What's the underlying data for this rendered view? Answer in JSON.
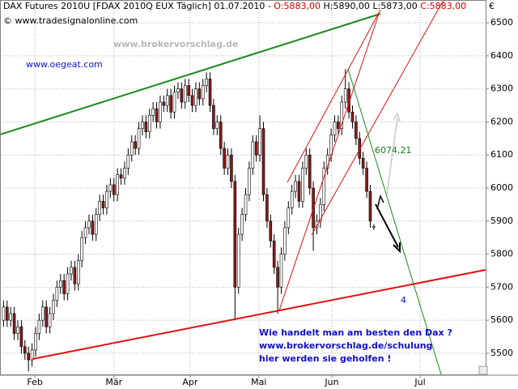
{
  "chart_data": {
    "type": "candlestick",
    "title": "DAX Futures 2010U [FDAX 2010Q EUX  Täglich] 01.07.2010 - ",
    "ohlc_text": [
      "O:5883,00",
      "H:5890,00",
      "L:5873,00",
      "C:5883,00"
    ],
    "copyright": "© www.tradesignalonline.com",
    "watermark": "www.brokervorschlag.de",
    "site": "www.oegeat.com",
    "currency": "€",
    "annotations": {
      "level": "6074,21",
      "wave": "4",
      "message": [
        "Wie handelt man am besten den Dax ?",
        "www.brokervorschlag.de/schulung",
        "hier werden sie geholfen !"
      ]
    },
    "up_color": "#ffffff",
    "down_color": "#8b1a1a",
    "grid": true,
    "x": [
      0,
      1,
      2,
      3,
      4,
      5,
      6,
      7,
      8,
      9,
      10,
      11,
      12,
      13,
      14,
      15,
      16,
      17,
      18,
      19,
      20,
      21,
      22,
      23,
      24,
      25,
      26,
      27,
      28,
      29,
      30,
      31,
      32,
      33,
      34,
      35,
      36,
      37,
      38,
      39,
      40,
      41,
      42,
      43,
      44,
      45,
      46,
      47,
      48,
      49,
      50,
      51,
      52,
      53,
      54,
      55,
      56,
      57,
      58,
      59,
      60,
      61,
      62,
      63,
      64,
      65,
      66,
      67,
      68,
      69,
      70,
      71,
      72,
      73,
      74,
      75,
      76,
      77,
      78,
      79,
      80,
      81,
      82,
      83,
      84,
      85,
      86,
      87,
      88,
      89,
      90,
      91,
      92,
      93,
      94,
      95,
      96,
      97,
      98,
      99,
      100,
      101,
      102,
      103,
      104
    ],
    "open": [
      5600,
      5640,
      5600,
      5620,
      5560,
      5580,
      5520,
      5500,
      5480,
      5510,
      5560,
      5600,
      5640,
      5580,
      5620,
      5660,
      5700,
      5720,
      5680,
      5740,
      5760,
      5710,
      5780,
      5850,
      5880,
      5900,
      5860,
      5920,
      5960,
      5940,
      5990,
      6010,
      5980,
      6040,
      6030,
      6060,
      6100,
      6140,
      6120,
      6180,
      6200,
      6170,
      6220,
      6240,
      6200,
      6260,
      6250,
      6280,
      6230,
      6290,
      6300,
      6260,
      6310,
      6280,
      6250,
      6300,
      6270,
      6310,
      6330,
      6250,
      6180,
      6200,
      6120,
      6060,
      6100,
      6020,
      5700,
      5860,
      5920,
      5980,
      6060,
      6140,
      6100,
      6180,
      5980,
      5900,
      5840,
      5760,
      5700,
      5800,
      5880,
      5940,
      5990,
      6020,
      5960,
      6060,
      6100,
      6000,
      5880,
      5900,
      5950,
      6060,
      6100,
      6160,
      6200,
      6180,
      6260,
      6300,
      6230,
      6200,
      6150,
      6090,
      6060,
      5990,
      5883
    ],
    "high": [
      5660,
      5660,
      5640,
      5640,
      5600,
      5600,
      5540,
      5520,
      5530,
      5580,
      5620,
      5660,
      5660,
      5640,
      5680,
      5720,
      5740,
      5740,
      5760,
      5780,
      5780,
      5800,
      5870,
      5900,
      5920,
      5920,
      5940,
      5980,
      5980,
      6010,
      6030,
      6030,
      6060,
      6060,
      6080,
      6120,
      6160,
      6160,
      6200,
      6220,
      6220,
      6240,
      6260,
      6260,
      6280,
      6280,
      6300,
      6300,
      6310,
      6320,
      6320,
      6330,
      6330,
      6300,
      6320,
      6320,
      6330,
      6350,
      6350,
      6270,
      6220,
      6220,
      6140,
      6120,
      6120,
      6040,
      5880,
      5940,
      6000,
      6080,
      6160,
      6160,
      6220,
      6200,
      6000,
      5920,
      5860,
      5780,
      5820,
      5900,
      5960,
      6010,
      6040,
      6040,
      6080,
      6120,
      6120,
      6020,
      5920,
      5970,
      6080,
      6120,
      6180,
      6220,
      6220,
      6280,
      6360,
      6320,
      6250,
      6220,
      6170,
      6110,
      6080,
      6010,
      5890
    ],
    "low": [
      5580,
      5580,
      5580,
      5540,
      5540,
      5500,
      5480,
      5445,
      5460,
      5490,
      5540,
      5580,
      5560,
      5560,
      5600,
      5640,
      5680,
      5660,
      5660,
      5720,
      5690,
      5690,
      5760,
      5830,
      5860,
      5840,
      5840,
      5900,
      5920,
      5920,
      5970,
      5960,
      5960,
      6010,
      6010,
      6040,
      6080,
      6100,
      6100,
      6160,
      6150,
      6150,
      6200,
      6180,
      6180,
      6230,
      6230,
      6210,
      6210,
      6270,
      6240,
      6240,
      6260,
      6230,
      6230,
      6250,
      6250,
      6290,
      6230,
      6160,
      6160,
      6100,
      6040,
      6040,
      6000,
      5600,
      5680,
      5840,
      5900,
      5960,
      6040,
      6080,
      6080,
      5960,
      5880,
      5820,
      5740,
      5620,
      5680,
      5780,
      5860,
      5920,
      5970,
      5940,
      5940,
      6040,
      5980,
      5810,
      5860,
      5880,
      5930,
      6040,
      6080,
      6140,
      6160,
      6160,
      6240,
      6210,
      6180,
      6130,
      6070,
      6040,
      5970,
      5880,
      5873
    ],
    "close": [
      5640,
      5600,
      5620,
      5560,
      5580,
      5520,
      5500,
      5480,
      5510,
      5560,
      5600,
      5640,
      5580,
      5620,
      5660,
      5700,
      5720,
      5680,
      5740,
      5760,
      5710,
      5780,
      5850,
      5880,
      5900,
      5860,
      5920,
      5960,
      5940,
      5990,
      6010,
      5980,
      6040,
      6030,
      6060,
      6100,
      6140,
      6120,
      6180,
      6200,
      6170,
      6220,
      6240,
      6200,
      6260,
      6250,
      6280,
      6230,
      6290,
      6300,
      6260,
      6310,
      6280,
      6250,
      6300,
      6270,
      6310,
      6330,
      6250,
      6180,
      6200,
      6120,
      6060,
      6100,
      6020,
      5700,
      5860,
      5920,
      5980,
      6060,
      6140,
      6100,
      6180,
      5980,
      5900,
      5840,
      5760,
      5700,
      5800,
      5880,
      5940,
      5990,
      6020,
      5960,
      6060,
      6100,
      6000,
      5880,
      5900,
      5950,
      6060,
      6100,
      6160,
      6200,
      6180,
      6260,
      6300,
      6230,
      6200,
      6150,
      6090,
      6060,
      5990,
      5900,
      5883
    ],
    "xlim": [
      -1,
      135.4
    ],
    "xticks": [
      {
        "value": 8.8,
        "label": "Feb"
      },
      {
        "value": 31,
        "label": "Mär"
      },
      {
        "value": 52.4,
        "label": "Apr"
      },
      {
        "value": 71.7,
        "label": "Mai"
      },
      {
        "value": 92.2,
        "label": "Jun"
      },
      {
        "value": 117,
        "label": "Jul"
      }
    ],
    "ylim": [
      5436,
      6569
    ],
    "yticks": [
      5500,
      5600,
      5700,
      5800,
      5900,
      6000,
      6100,
      6200,
      6300,
      6400,
      6500
    ]
  }
}
